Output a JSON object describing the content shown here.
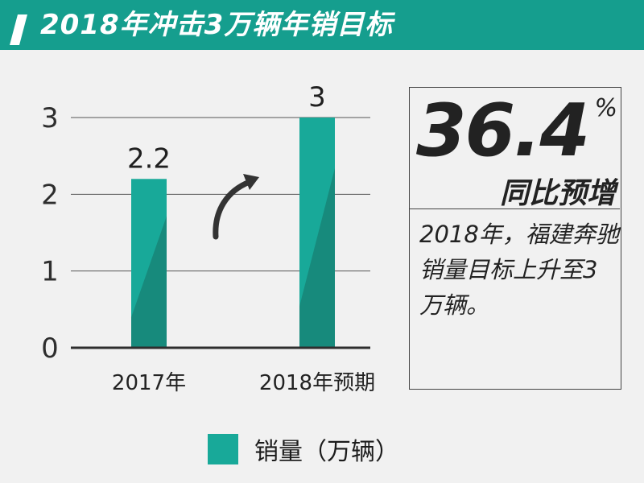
{
  "banner": {
    "title": "2018年冲击3万辆年销目标",
    "color": "#159e8e"
  },
  "chart_data": {
    "type": "bar",
    "title": "",
    "xlabel": "",
    "ylabel": "",
    "categories": [
      "2017年",
      "2018年预期"
    ],
    "series": [
      {
        "name": "销量（万辆）",
        "values": [
          2.2,
          3
        ]
      }
    ],
    "value_labels": [
      "2.2",
      "3"
    ],
    "yticks": [
      0,
      1,
      2,
      3
    ],
    "ytick_labels": [
      "0",
      "1",
      "2",
      "3"
    ],
    "ylim": [
      0,
      3
    ],
    "grid": true,
    "legend": "bottom",
    "colors": {
      "bar": "#18a999",
      "bar_shade": "#178a7c",
      "axis": "#333333",
      "grid": "#555555"
    }
  },
  "legend": {
    "label": "销量（万辆）",
    "color": "#18a999"
  },
  "annotation": {
    "arrow": "curved-arrow-icon"
  },
  "stat": {
    "value": "36.4",
    "unit": "%",
    "caption": "同比预增",
    "description": "2018年，福建奔驰销量目标上升至3万辆。"
  }
}
